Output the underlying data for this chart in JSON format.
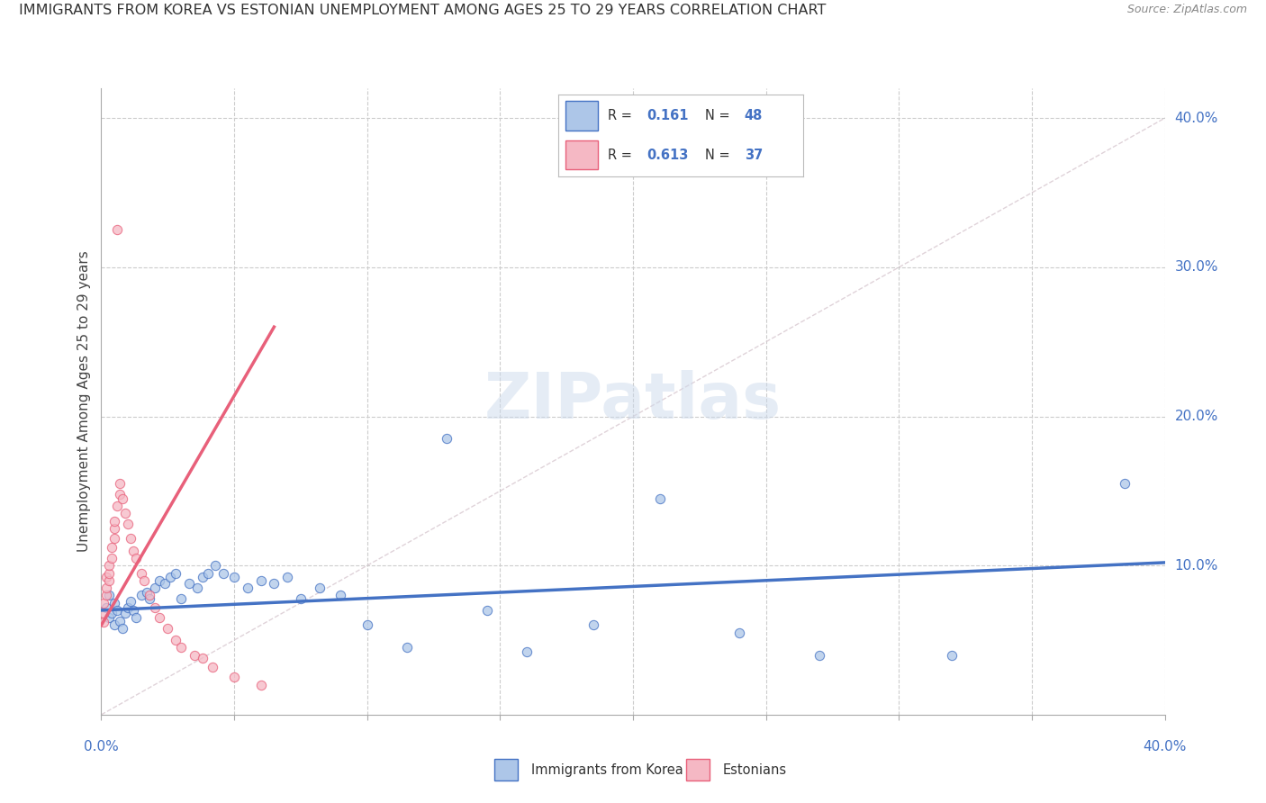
{
  "title": "IMMIGRANTS FROM KOREA VS ESTONIAN UNEMPLOYMENT AMONG AGES 25 TO 29 YEARS CORRELATION CHART",
  "source": "Source: ZipAtlas.com",
  "ylabel": "Unemployment Among Ages 25 to 29 years",
  "r_blue": "0.161",
  "n_blue": "48",
  "r_pink": "0.613",
  "n_pink": "37",
  "blue_fill": "#adc6e8",
  "blue_edge": "#4472c4",
  "pink_fill": "#f5b8c4",
  "pink_edge": "#e8607a",
  "blue_line": "#4472c4",
  "pink_line": "#e8607a",
  "diag_line": "#d8c8d0",
  "grid_color": "#cccccc",
  "label_color": "#4472c4",
  "text_color": "#444444",
  "watermark_color": "#ccdaec",
  "xlim": [
    0.0,
    0.4
  ],
  "ylim": [
    0.0,
    0.42
  ],
  "blue_x": [
    0.002,
    0.003,
    0.003,
    0.004,
    0.005,
    0.005,
    0.006,
    0.007,
    0.008,
    0.009,
    0.01,
    0.011,
    0.012,
    0.013,
    0.015,
    0.017,
    0.018,
    0.02,
    0.022,
    0.024,
    0.026,
    0.028,
    0.03,
    0.033,
    0.036,
    0.038,
    0.04,
    0.043,
    0.046,
    0.05,
    0.055,
    0.06,
    0.065,
    0.07,
    0.075,
    0.082,
    0.09,
    0.1,
    0.115,
    0.13,
    0.145,
    0.16,
    0.185,
    0.21,
    0.24,
    0.27,
    0.32,
    0.385
  ],
  "blue_y": [
    0.072,
    0.065,
    0.08,
    0.068,
    0.075,
    0.06,
    0.07,
    0.063,
    0.058,
    0.068,
    0.072,
    0.076,
    0.07,
    0.065,
    0.08,
    0.082,
    0.078,
    0.085,
    0.09,
    0.088,
    0.092,
    0.095,
    0.078,
    0.088,
    0.085,
    0.092,
    0.095,
    0.1,
    0.095,
    0.092,
    0.085,
    0.09,
    0.088,
    0.092,
    0.078,
    0.085,
    0.08,
    0.06,
    0.045,
    0.185,
    0.07,
    0.042,
    0.06,
    0.145,
    0.055,
    0.04,
    0.04,
    0.155
  ],
  "pink_x": [
    0.001,
    0.001,
    0.001,
    0.002,
    0.002,
    0.002,
    0.003,
    0.003,
    0.003,
    0.004,
    0.004,
    0.005,
    0.005,
    0.005,
    0.006,
    0.006,
    0.007,
    0.007,
    0.008,
    0.009,
    0.01,
    0.011,
    0.012,
    0.013,
    0.015,
    0.016,
    0.018,
    0.02,
    0.022,
    0.025,
    0.028,
    0.03,
    0.035,
    0.038,
    0.042,
    0.05,
    0.06
  ],
  "pink_y": [
    0.068,
    0.075,
    0.062,
    0.08,
    0.085,
    0.092,
    0.09,
    0.095,
    0.1,
    0.105,
    0.112,
    0.118,
    0.125,
    0.13,
    0.325,
    0.14,
    0.148,
    0.155,
    0.145,
    0.135,
    0.128,
    0.118,
    0.11,
    0.105,
    0.095,
    0.09,
    0.08,
    0.072,
    0.065,
    0.058,
    0.05,
    0.045,
    0.04,
    0.038,
    0.032,
    0.025,
    0.02
  ],
  "blue_trend_x": [
    0.0,
    0.4
  ],
  "blue_trend_y": [
    0.07,
    0.102
  ],
  "pink_trend_x": [
    0.0,
    0.065
  ],
  "pink_trend_y": [
    0.06,
    0.26
  ]
}
